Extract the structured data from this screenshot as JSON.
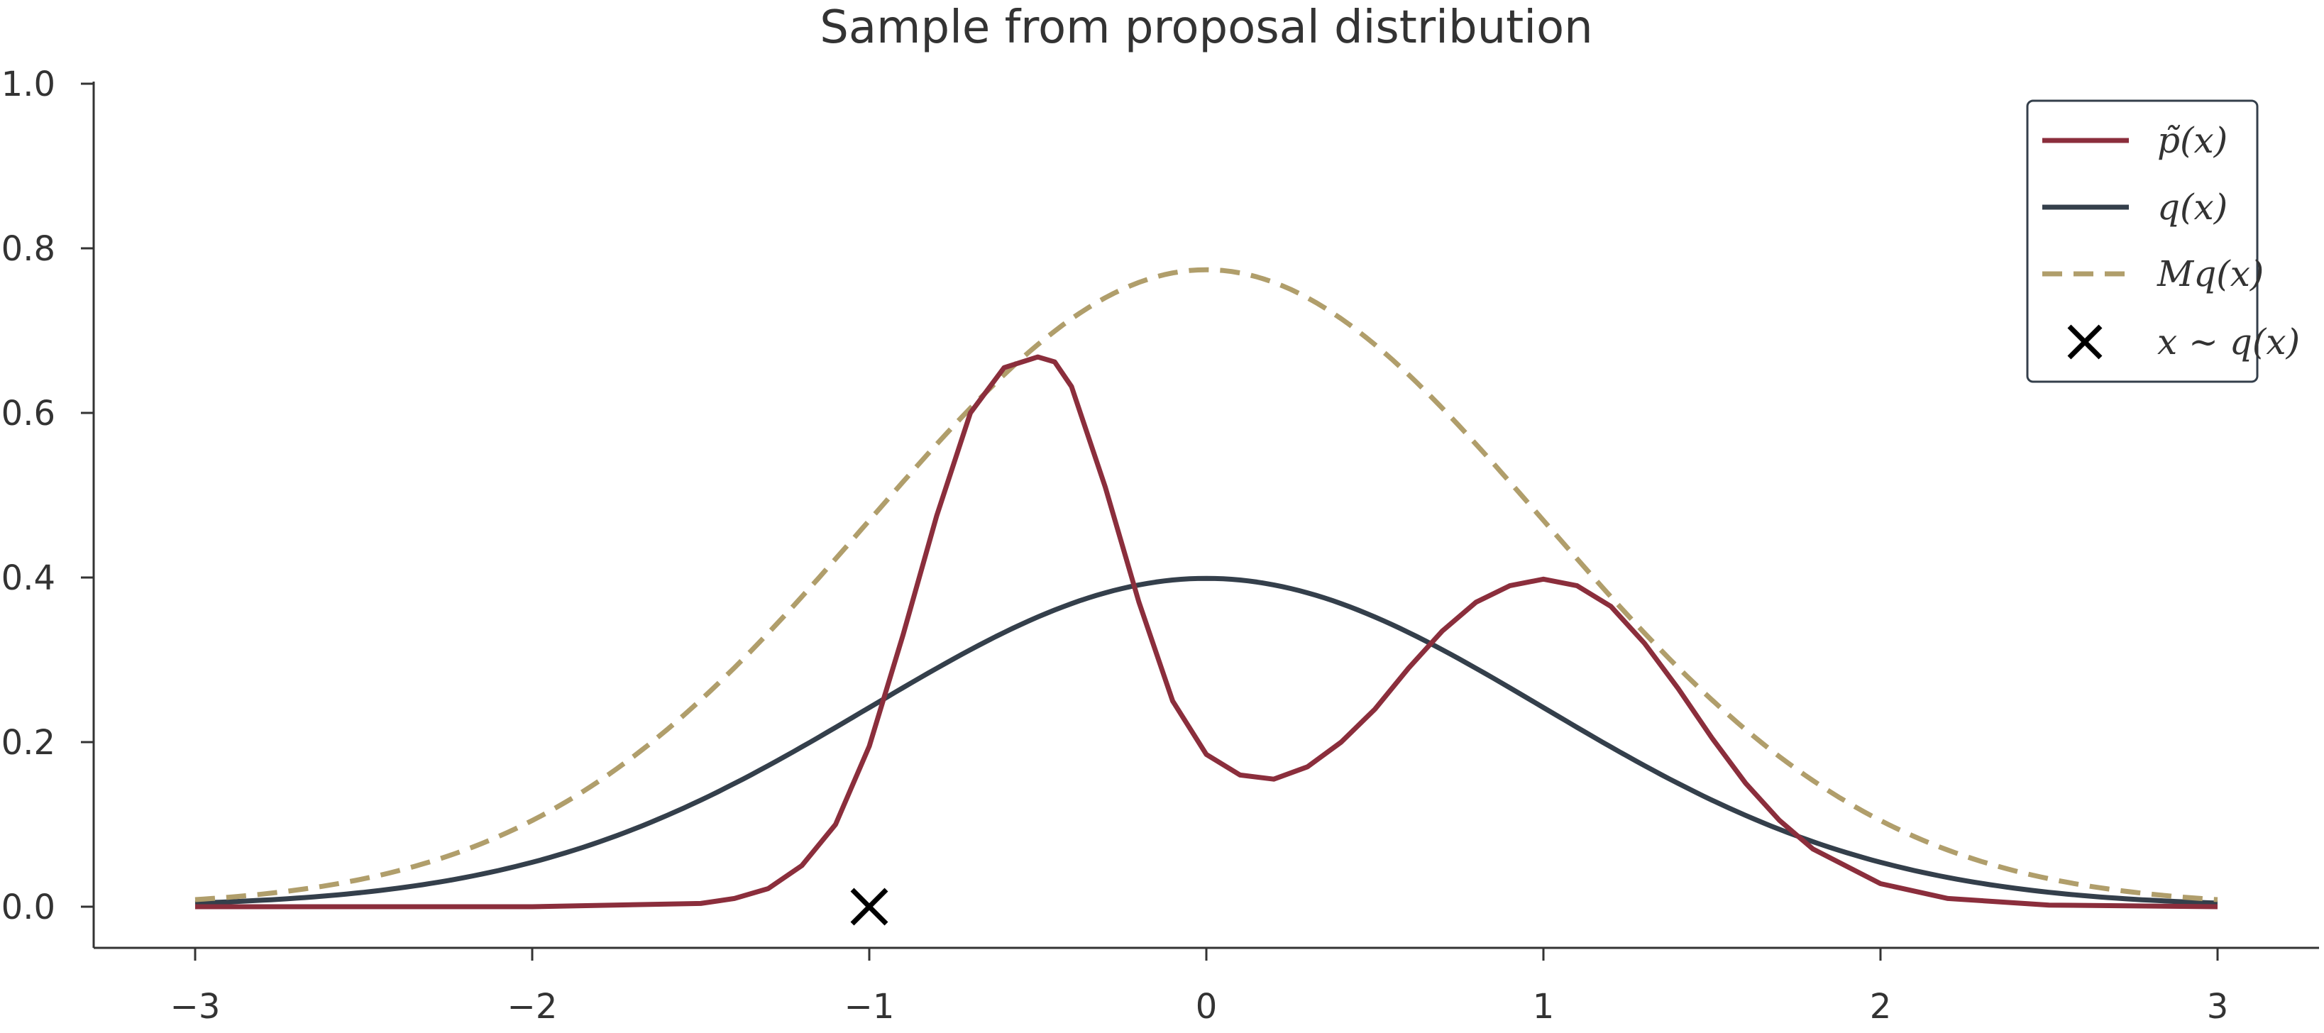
{
  "chart_data": {
    "type": "line",
    "title": "Sample from proposal distribution",
    "xlabel": "",
    "ylabel": "",
    "xlim": [
      -3.3,
      3.3
    ],
    "ylim": [
      -0.05,
      1.0
    ],
    "x_ticks": [
      -3,
      -2,
      -1,
      0,
      1,
      2,
      3
    ],
    "x_tick_labels": [
      "−3",
      "−2",
      "−1",
      "0",
      "1",
      "2",
      "3"
    ],
    "y_ticks": [
      0.0,
      0.2,
      0.4,
      0.6,
      0.8,
      1.0
    ],
    "y_tick_labels": [
      "0.0",
      "0.2",
      "0.4",
      "0.6",
      "0.8",
      "1.0"
    ],
    "grid": false,
    "legend_position": "top-right",
    "series": [
      {
        "name": "p̃(x)",
        "color": "#8b2e3c",
        "style": "solid",
        "x": [
          -3.0,
          -2.0,
          -1.5,
          -1.4,
          -1.3,
          -1.2,
          -1.1,
          -1.0,
          -0.9,
          -0.8,
          -0.7,
          -0.6,
          -0.5,
          -0.45,
          -0.4,
          -0.3,
          -0.2,
          -0.1,
          0.0,
          0.1,
          0.2,
          0.3,
          0.4,
          0.5,
          0.6,
          0.7,
          0.8,
          0.9,
          1.0,
          1.1,
          1.2,
          1.3,
          1.4,
          1.5,
          1.6,
          1.7,
          1.8,
          2.0,
          2.2,
          2.5,
          3.0
        ],
        "y": [
          0.0,
          0.0,
          0.004,
          0.01,
          0.022,
          0.05,
          0.1,
          0.195,
          0.33,
          0.475,
          0.6,
          0.655,
          0.668,
          0.662,
          0.632,
          0.51,
          0.37,
          0.25,
          0.185,
          0.16,
          0.155,
          0.17,
          0.2,
          0.24,
          0.29,
          0.335,
          0.37,
          0.39,
          0.398,
          0.39,
          0.365,
          0.32,
          0.265,
          0.205,
          0.15,
          0.105,
          0.07,
          0.028,
          0.01,
          0.002,
          0.0
        ]
      },
      {
        "name": "q(x)",
        "color": "#343f4b",
        "style": "solid",
        "function": "normal_pdf",
        "x_range": [
          -3,
          3
        ]
      },
      {
        "name": "Mq(x)",
        "color": "#b09e6b",
        "style": "dashed",
        "function": "scaled_normal_pdf",
        "scale": 1.94,
        "x_range": [
          -3,
          3
        ]
      },
      {
        "name": "x ∼ q(x)",
        "color": "#000000",
        "type": "scatter",
        "marker": "x",
        "x": [
          -1.0
        ],
        "y": [
          0.0
        ]
      }
    ]
  }
}
